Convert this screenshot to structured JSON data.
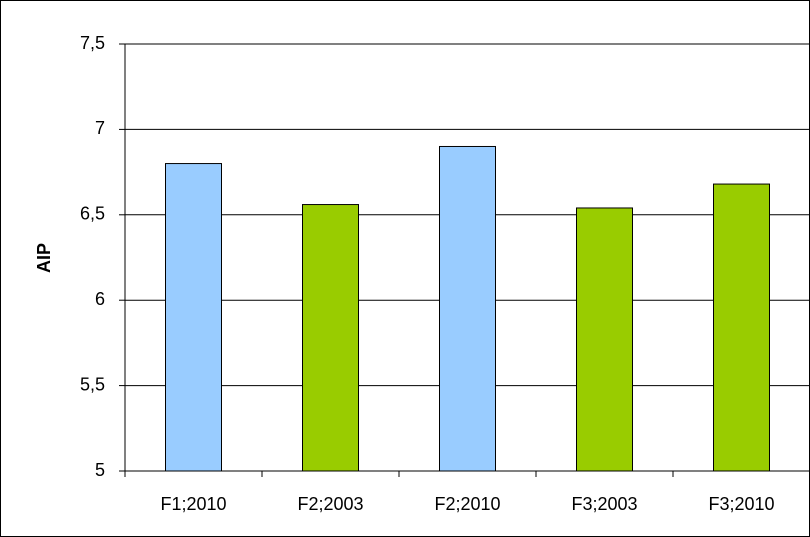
{
  "chart_data": {
    "type": "bar",
    "y_label": "AIP",
    "categories": [
      "F1;2010",
      "F2;2003",
      "F2;2010",
      "F3;2003",
      "F3;2010"
    ],
    "values": [
      6.8,
      6.56,
      6.9,
      6.54,
      6.68
    ],
    "colors": [
      "#99ccff",
      "#99cc00",
      "#99ccff",
      "#99cc00",
      "#99cc00"
    ],
    "ylim": [
      5,
      7.5
    ],
    "yticks": [
      5,
      {
        "value": 5.5,
        "label": "5,5"
      },
      6,
      {
        "value": 6.5,
        "label": "6,5"
      },
      7,
      {
        "value": 7.5,
        "label": "7,5"
      }
    ],
    "grid": true
  }
}
